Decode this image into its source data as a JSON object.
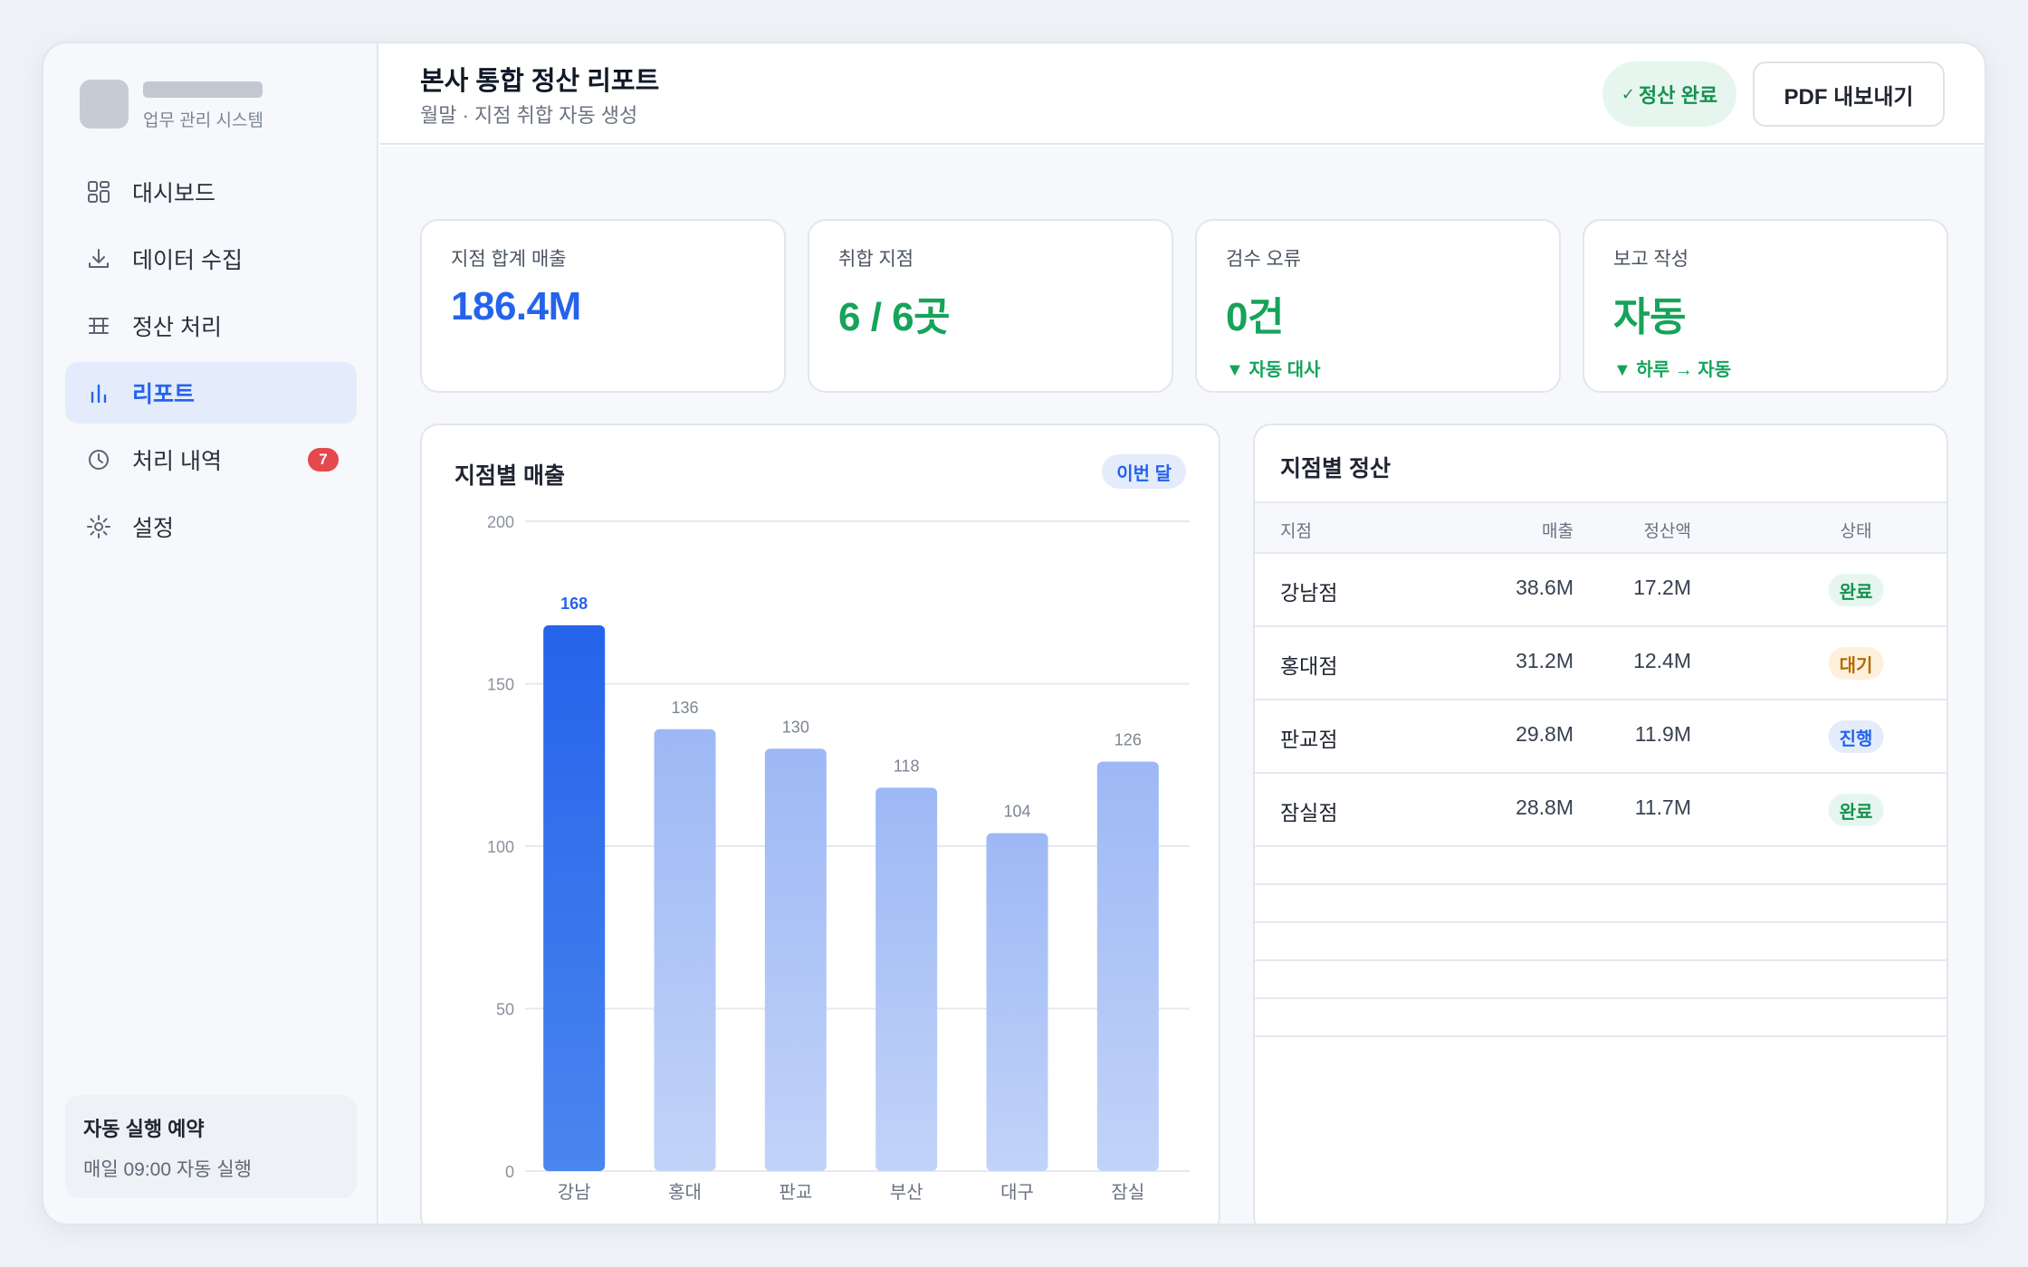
{
  "sidebar": {
    "brand_subtitle": "업무 관리 시스템",
    "items": [
      {
        "label": "대시보드",
        "icon": "dashboard-icon",
        "active": false
      },
      {
        "label": "데이터 수집",
        "icon": "download-icon",
        "active": false
      },
      {
        "label": "정산 처리",
        "icon": "table-icon",
        "active": false
      },
      {
        "label": "리포트",
        "icon": "bar-chart-icon",
        "active": true
      },
      {
        "label": "처리 내역",
        "icon": "clock-icon",
        "active": false,
        "badge": "7"
      },
      {
        "label": "설정",
        "icon": "gear-icon",
        "active": false
      }
    ],
    "schedule": {
      "title": "자동 실행 예약",
      "description": "매일 09:00 자동 실행"
    }
  },
  "header": {
    "title": "본사 통합 정산 리포트",
    "subtitle": "월말 · 지점 취합 자동 생성",
    "status_check": "✓",
    "status_label": "정산 완료",
    "pdf_button": "PDF 내보내기"
  },
  "kpis": [
    {
      "label": "지점 합계 매출",
      "value": "186.4M",
      "delta": "",
      "color": "#2563eb"
    },
    {
      "label": "취합 지점",
      "value": "6 / 6곳",
      "delta": "",
      "color": "#16a35a"
    },
    {
      "label": "검수 오류",
      "value": "0건",
      "delta": "▼ 자동 대사",
      "color": "#16a35a"
    },
    {
      "label": "보고 작성",
      "value": "자동",
      "delta": "▼ 하루 → 자동",
      "color": "#16a35a"
    }
  ],
  "chart": {
    "title": "지점별 매출",
    "period": "이번 달"
  },
  "chart_data": {
    "type": "bar",
    "categories": [
      "강남",
      "홍대",
      "판교",
      "부산",
      "대구",
      "잠실"
    ],
    "values": [
      168,
      136,
      130,
      118,
      104,
      126
    ],
    "ylim": [
      0,
      200
    ],
    "yticks": [
      0,
      50,
      100,
      150,
      200
    ],
    "highlight_index": 0,
    "highlight_color": "#2563eb",
    "bar_color": "#9db8f5",
    "grid": true
  },
  "table": {
    "title": "지점별 정산",
    "headers": {
      "branch": "지점",
      "sales": "매출",
      "settlement": "정산액",
      "status": "상태"
    },
    "rows": [
      {
        "branch": "강남점",
        "sales": "38.6M",
        "settlement": "17.2M",
        "status": "완료",
        "status_type": "done"
      },
      {
        "branch": "홍대점",
        "sales": "31.2M",
        "settlement": "12.4M",
        "status": "대기",
        "status_type": "wait"
      },
      {
        "branch": "판교점",
        "sales": "29.8M",
        "settlement": "11.9M",
        "status": "진행",
        "status_type": "prog"
      },
      {
        "branch": "잠실점",
        "sales": "28.8M",
        "settlement": "11.7M",
        "status": "완료",
        "status_type": "done"
      }
    ]
  }
}
